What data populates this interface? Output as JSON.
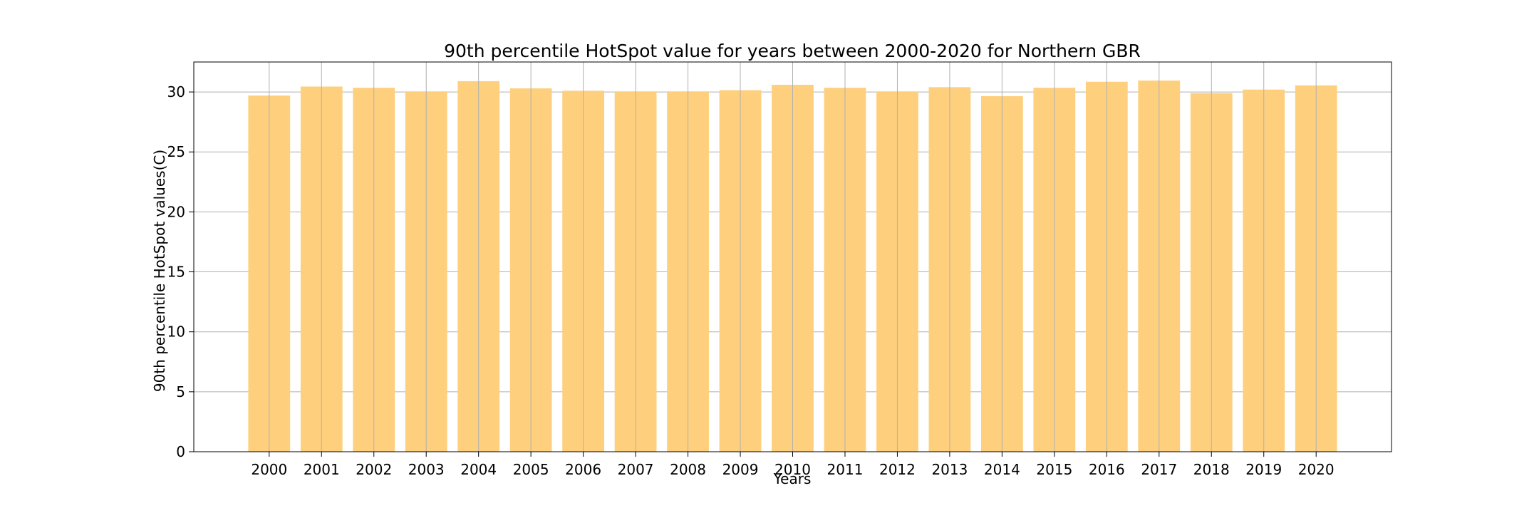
{
  "chart_data": {
    "type": "bar",
    "title": "90th percentile HotSpot value for years between 2000-2020 for Northern GBR",
    "xlabel": "Years",
    "ylabel": "90th percentile HotSpot values(C)",
    "categories": [
      "2000",
      "2001",
      "2002",
      "2003",
      "2004",
      "2005",
      "2006",
      "2007",
      "2008",
      "2009",
      "2010",
      "2011",
      "2012",
      "2013",
      "2014",
      "2015",
      "2016",
      "2017",
      "2018",
      "2019",
      "2020"
    ],
    "values": [
      29.7,
      30.45,
      30.35,
      30.05,
      30.9,
      30.3,
      30.1,
      30.05,
      30.05,
      30.15,
      30.6,
      30.35,
      30.05,
      30.4,
      29.65,
      30.35,
      30.85,
      30.95,
      29.9,
      30.2,
      30.55
    ],
    "yticks": [
      "0",
      "5",
      "10",
      "15",
      "20",
      "25",
      "30"
    ],
    "ylim": [
      0,
      32.5
    ],
    "grid": true,
    "bar_color": "#fed07e",
    "grid_color": "#b0b0b0",
    "axis_color": "#000000"
  }
}
